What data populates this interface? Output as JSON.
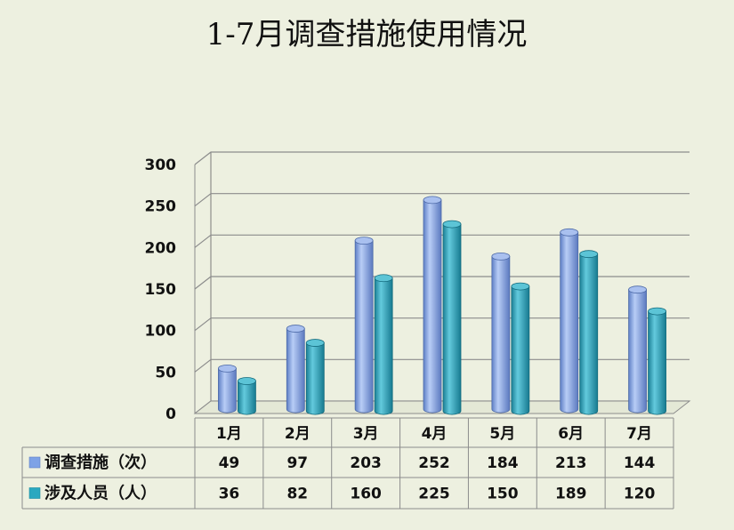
{
  "chart_data": {
    "type": "bar",
    "title": "1-7月调查措施使用情况",
    "categories": [
      "1月",
      "2月",
      "3月",
      "4月",
      "5月",
      "6月",
      "7月"
    ],
    "series": [
      {
        "name": "调查措施（次）",
        "values": [
          49,
          97,
          203,
          252,
          184,
          213,
          144
        ],
        "color": "#7ea2e6"
      },
      {
        "name": "涉及人员（人）",
        "values": [
          36,
          82,
          160,
          225,
          150,
          189,
          120
        ],
        "color": "#2aa8c0"
      }
    ],
    "yticks": [
      "0",
      "50",
      "100",
      "150",
      "200",
      "250",
      "300"
    ],
    "ylim": [
      0,
      300
    ],
    "grid": true,
    "data_table": true,
    "style": "3d-cylinder"
  }
}
